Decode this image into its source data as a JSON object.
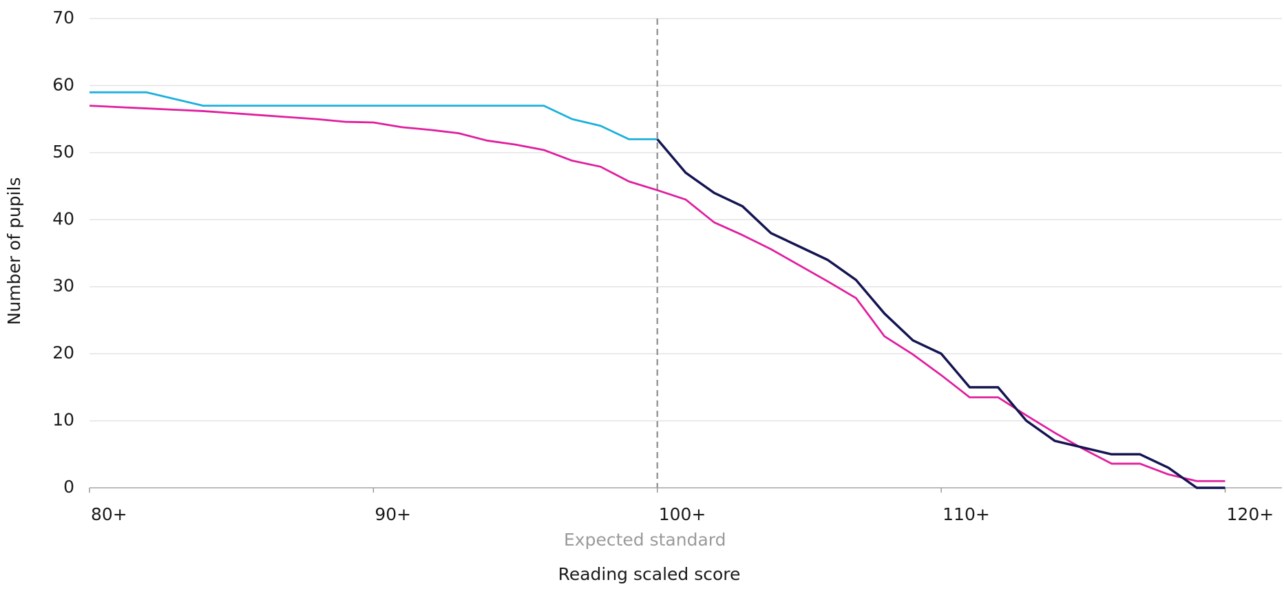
{
  "chart_data": {
    "type": "line",
    "x_label": "Reading scaled score",
    "y_label": "Number of pupils",
    "x": [
      80,
      81,
      82,
      83,
      84,
      85,
      86,
      87,
      88,
      89,
      90,
      91,
      92,
      93,
      94,
      95,
      96,
      97,
      98,
      99,
      100,
      101,
      102,
      103,
      104,
      105,
      106,
      107,
      108,
      109,
      110,
      111,
      112,
      113,
      114,
      115,
      116,
      117,
      118,
      119,
      120
    ],
    "series": [
      {
        "color": "#1ab0dc",
        "values": [
          59,
          59,
          59,
          58,
          57,
          57,
          57,
          57,
          57,
          57,
          57,
          57,
          57,
          57,
          57,
          57,
          57,
          55,
          54,
          52,
          52,
          null,
          null,
          null,
          null,
          null,
          null,
          null,
          null,
          null,
          null,
          null,
          null,
          null,
          null,
          null,
          null,
          null,
          null,
          null,
          null
        ]
      },
      {
        "color": "#e01e9e",
        "values": [
          57,
          56.8,
          56.6,
          56.4,
          56.2,
          55.9,
          55.6,
          55.3,
          55,
          54.6,
          54.5,
          53.8,
          53.4,
          52.9,
          51.8,
          51.2,
          50.4,
          48.8,
          47.9,
          45.7,
          44.4,
          43,
          39.6,
          37.7,
          35.6,
          33.2,
          30.8,
          28.3,
          22.6,
          19.9,
          16.8,
          13.5,
          13.5,
          10.8,
          8.2,
          5.8,
          3.6,
          3.6,
          2,
          1,
          1
        ]
      },
      {
        "color": "#141452",
        "values": [
          null,
          null,
          null,
          null,
          null,
          null,
          null,
          null,
          null,
          null,
          null,
          null,
          null,
          null,
          null,
          null,
          null,
          null,
          null,
          null,
          52,
          47,
          44,
          42,
          38,
          36,
          34,
          31,
          26,
          22,
          20,
          15,
          15,
          10,
          7,
          6,
          5,
          5,
          3,
          0,
          0
        ]
      }
    ],
    "reference_line": {
      "x": 100,
      "label": "Expected standard",
      "color": "#9a9a9a"
    },
    "xlim": [
      80,
      122
    ],
    "xticks": [
      {
        "value": 80,
        "label": "80+"
      },
      {
        "value": 90,
        "label": "90+"
      },
      {
        "value": 100,
        "label": "100+"
      },
      {
        "value": 110,
        "label": "110+"
      },
      {
        "value": 120,
        "label": "120+"
      }
    ],
    "ylim": [
      0,
      70
    ],
    "yticks": [
      0,
      10,
      20,
      30,
      40,
      50,
      60,
      70
    ],
    "grid": true
  }
}
